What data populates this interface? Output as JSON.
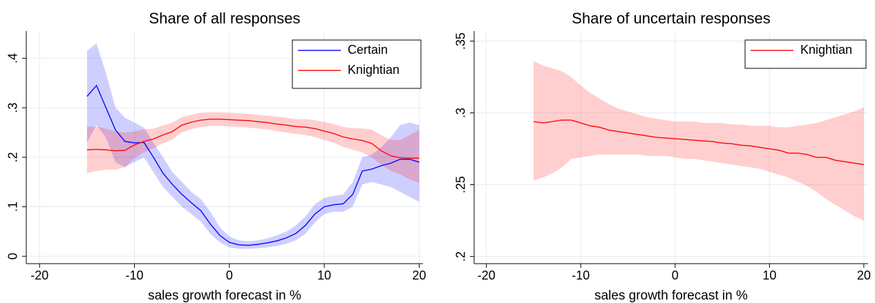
{
  "chart_data": [
    {
      "type": "line",
      "title": "Share of all responses",
      "x_label": "sales growth forecast in %",
      "x": [
        -15,
        -14,
        -13,
        -12,
        -11,
        -10,
        -9,
        -8,
        -7,
        -6,
        -5,
        -4,
        -3,
        -2,
        -1,
        0,
        1,
        2,
        3,
        4,
        5,
        6,
        7,
        8,
        9,
        10,
        11,
        12,
        13,
        14,
        15,
        16,
        17,
        18,
        19,
        20
      ],
      "series": [
        {
          "name": "Certain",
          "color": "#1010ff",
          "values": [
            0.323,
            0.345,
            0.3,
            0.255,
            0.232,
            0.229,
            0.23,
            0.2,
            0.168,
            0.145,
            0.125,
            0.108,
            0.092,
            0.065,
            0.042,
            0.028,
            0.023,
            0.022,
            0.024,
            0.027,
            0.031,
            0.037,
            0.046,
            0.062,
            0.085,
            0.1,
            0.104,
            0.106,
            0.125,
            0.172,
            0.176,
            0.183,
            0.188,
            0.196,
            0.196,
            0.19
          ],
          "lower": [
            0.23,
            0.265,
            0.24,
            0.19,
            0.18,
            0.19,
            0.2,
            0.17,
            0.14,
            0.12,
            0.1,
            0.085,
            0.07,
            0.045,
            0.028,
            0.018,
            0.015,
            0.015,
            0.016,
            0.018,
            0.021,
            0.025,
            0.032,
            0.045,
            0.068,
            0.085,
            0.09,
            0.09,
            0.1,
            0.145,
            0.15,
            0.145,
            0.14,
            0.13,
            0.12,
            0.11
          ],
          "upper": [
            0.415,
            0.43,
            0.37,
            0.3,
            0.28,
            0.27,
            0.26,
            0.23,
            0.2,
            0.17,
            0.15,
            0.13,
            0.115,
            0.09,
            0.058,
            0.04,
            0.032,
            0.03,
            0.032,
            0.036,
            0.042,
            0.05,
            0.062,
            0.08,
            0.105,
            0.118,
            0.122,
            0.125,
            0.15,
            0.2,
            0.205,
            0.22,
            0.24,
            0.265,
            0.27,
            0.265
          ]
        },
        {
          "name": "Knightian",
          "color": "#ff1010",
          "values": [
            0.215,
            0.216,
            0.215,
            0.213,
            0.214,
            0.225,
            0.232,
            0.237,
            0.245,
            0.252,
            0.265,
            0.271,
            0.275,
            0.277,
            0.277,
            0.276,
            0.275,
            0.274,
            0.272,
            0.27,
            0.267,
            0.265,
            0.262,
            0.261,
            0.258,
            0.253,
            0.248,
            0.241,
            0.237,
            0.234,
            0.228,
            0.213,
            0.203,
            0.199,
            0.198,
            0.198
          ],
          "lower": [
            0.168,
            0.172,
            0.175,
            0.175,
            0.18,
            0.198,
            0.21,
            0.218,
            0.228,
            0.236,
            0.25,
            0.257,
            0.261,
            0.263,
            0.263,
            0.262,
            0.261,
            0.26,
            0.258,
            0.256,
            0.253,
            0.25,
            0.247,
            0.245,
            0.241,
            0.235,
            0.229,
            0.221,
            0.215,
            0.21,
            0.2,
            0.185,
            0.173,
            0.165,
            0.155,
            0.148
          ],
          "upper": [
            0.262,
            0.262,
            0.258,
            0.252,
            0.25,
            0.252,
            0.256,
            0.258,
            0.264,
            0.27,
            0.281,
            0.286,
            0.29,
            0.291,
            0.291,
            0.29,
            0.289,
            0.288,
            0.286,
            0.284,
            0.282,
            0.28,
            0.277,
            0.277,
            0.275,
            0.271,
            0.267,
            0.261,
            0.259,
            0.258,
            0.256,
            0.245,
            0.235,
            0.235,
            0.245,
            0.255
          ]
        }
      ],
      "xlim": [
        -21.4,
        20.4
      ],
      "xticks": [
        -20,
        -10,
        0,
        10,
        20
      ],
      "ylim": [
        -0.015,
        0.455
      ],
      "yticks": [
        0,
        {
          "value": 0.1,
          "label": ".1"
        },
        {
          "value": 0.2,
          "label": ".2"
        },
        {
          "value": 0.3,
          "label": ".3"
        },
        {
          "value": 0.4,
          "label": ".4"
        }
      ],
      "grid": true,
      "legend": "top-right"
    },
    {
      "type": "line",
      "title": "Share of uncertain responses",
      "x_label": "sales growth forecast in %",
      "x": [
        -15,
        -14,
        -13,
        -12,
        -11,
        -10,
        -9,
        -8,
        -7,
        -6,
        -5,
        -4,
        -3,
        -2,
        -1,
        0,
        1,
        2,
        3,
        4,
        5,
        6,
        7,
        8,
        9,
        10,
        11,
        12,
        13,
        14,
        15,
        16,
        17,
        18,
        19,
        20
      ],
      "series": [
        {
          "name": "Knightian",
          "color": "#ff1010",
          "values": [
            0.294,
            0.293,
            0.294,
            0.295,
            0.295,
            0.293,
            0.291,
            0.29,
            0.288,
            0.287,
            0.286,
            0.285,
            0.284,
            0.283,
            0.2825,
            0.282,
            0.2815,
            0.281,
            0.2805,
            0.28,
            0.279,
            0.2785,
            0.2775,
            0.277,
            0.276,
            0.275,
            0.274,
            0.272,
            0.272,
            0.271,
            0.269,
            0.269,
            0.267,
            0.266,
            0.265,
            0.264
          ],
          "lower": [
            0.253,
            0.255,
            0.258,
            0.262,
            0.268,
            0.269,
            0.27,
            0.271,
            0.271,
            0.271,
            0.271,
            0.271,
            0.27,
            0.27,
            0.27,
            0.269,
            0.268,
            0.268,
            0.267,
            0.266,
            0.265,
            0.264,
            0.263,
            0.262,
            0.261,
            0.259,
            0.257,
            0.255,
            0.252,
            0.249,
            0.245,
            0.24,
            0.236,
            0.232,
            0.228,
            0.225
          ],
          "upper": [
            0.336,
            0.333,
            0.331,
            0.329,
            0.325,
            0.319,
            0.314,
            0.31,
            0.306,
            0.303,
            0.301,
            0.299,
            0.297,
            0.296,
            0.295,
            0.294,
            0.294,
            0.294,
            0.293,
            0.293,
            0.293,
            0.292,
            0.292,
            0.291,
            0.291,
            0.291,
            0.29,
            0.29,
            0.291,
            0.292,
            0.293,
            0.295,
            0.297,
            0.299,
            0.301,
            0.304
          ]
        }
      ],
      "xlim": [
        -21.3,
        20.45
      ],
      "xticks": [
        -20,
        -10,
        0,
        10,
        20
      ],
      "ylim": [
        0.195,
        0.357
      ],
      "yticks": [
        {
          "value": 0.2,
          "label": ".2"
        },
        {
          "value": 0.25,
          "label": ".25"
        },
        {
          "value": 0.3,
          "label": ".3"
        },
        {
          "value": 0.35,
          "label": ".35"
        }
      ],
      "grid": true,
      "legend": "top-right"
    }
  ]
}
